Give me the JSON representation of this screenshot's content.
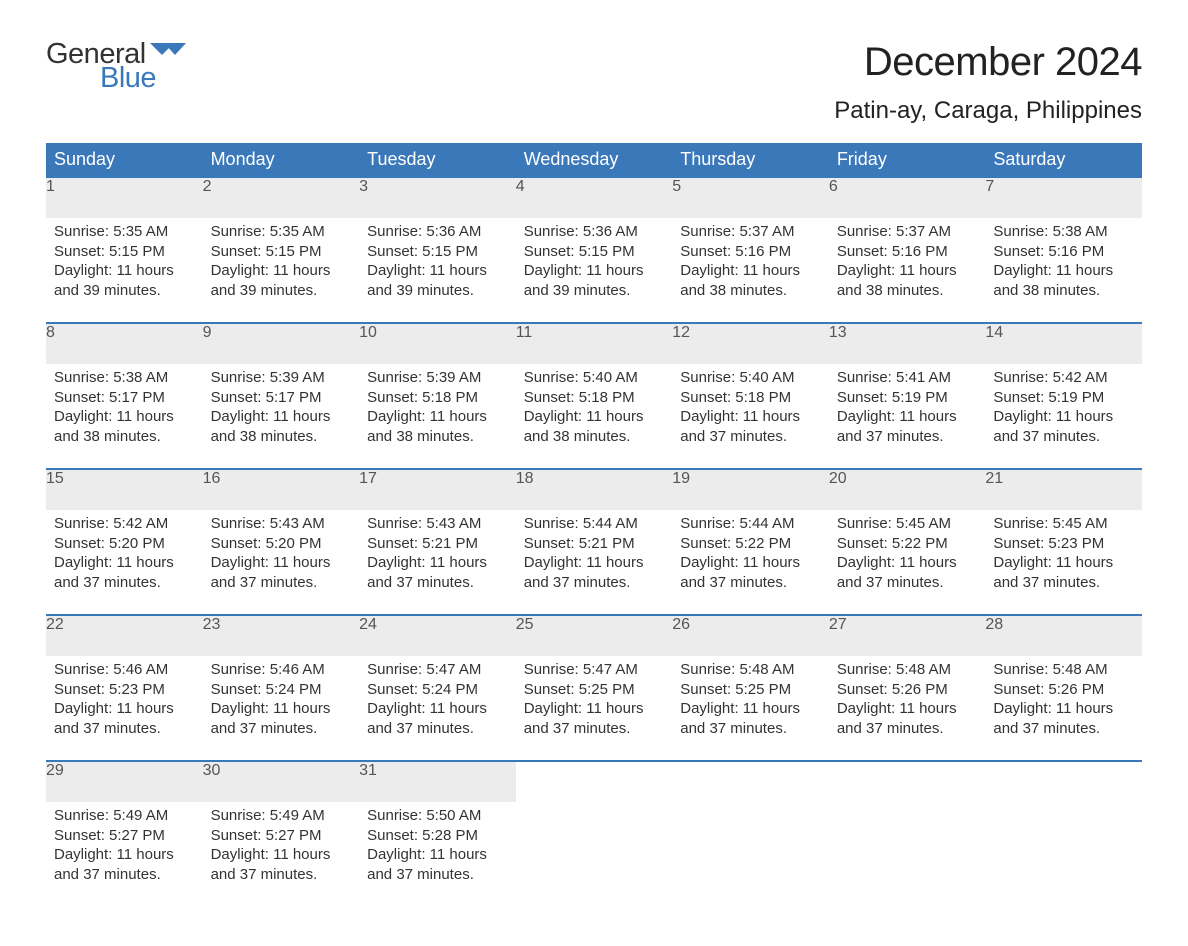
{
  "brand": {
    "text1": "General",
    "text2": "Blue",
    "flag_color": "#3a78b9"
  },
  "title": "December 2024",
  "location": "Patin-ay, Caraga, Philippines",
  "header_bg": "#3a78b9",
  "header_fg": "#ffffff",
  "daynum_bg": "#ececec",
  "daynum_fg": "#555555",
  "body_fg": "#333333",
  "page_bg": "#ffffff",
  "day_names": [
    "Sunday",
    "Monday",
    "Tuesday",
    "Wednesday",
    "Thursday",
    "Friday",
    "Saturday"
  ],
  "days": [
    {
      "n": "1",
      "sunrise": "5:35 AM",
      "sunset": "5:15 PM",
      "daylight": "11 hours and 39 minutes."
    },
    {
      "n": "2",
      "sunrise": "5:35 AM",
      "sunset": "5:15 PM",
      "daylight": "11 hours and 39 minutes."
    },
    {
      "n": "3",
      "sunrise": "5:36 AM",
      "sunset": "5:15 PM",
      "daylight": "11 hours and 39 minutes."
    },
    {
      "n": "4",
      "sunrise": "5:36 AM",
      "sunset": "5:15 PM",
      "daylight": "11 hours and 39 minutes."
    },
    {
      "n": "5",
      "sunrise": "5:37 AM",
      "sunset": "5:16 PM",
      "daylight": "11 hours and 38 minutes."
    },
    {
      "n": "6",
      "sunrise": "5:37 AM",
      "sunset": "5:16 PM",
      "daylight": "11 hours and 38 minutes."
    },
    {
      "n": "7",
      "sunrise": "5:38 AM",
      "sunset": "5:16 PM",
      "daylight": "11 hours and 38 minutes."
    },
    {
      "n": "8",
      "sunrise": "5:38 AM",
      "sunset": "5:17 PM",
      "daylight": "11 hours and 38 minutes."
    },
    {
      "n": "9",
      "sunrise": "5:39 AM",
      "sunset": "5:17 PM",
      "daylight": "11 hours and 38 minutes."
    },
    {
      "n": "10",
      "sunrise": "5:39 AM",
      "sunset": "5:18 PM",
      "daylight": "11 hours and 38 minutes."
    },
    {
      "n": "11",
      "sunrise": "5:40 AM",
      "sunset": "5:18 PM",
      "daylight": "11 hours and 38 minutes."
    },
    {
      "n": "12",
      "sunrise": "5:40 AM",
      "sunset": "5:18 PM",
      "daylight": "11 hours and 37 minutes."
    },
    {
      "n": "13",
      "sunrise": "5:41 AM",
      "sunset": "5:19 PM",
      "daylight": "11 hours and 37 minutes."
    },
    {
      "n": "14",
      "sunrise": "5:42 AM",
      "sunset": "5:19 PM",
      "daylight": "11 hours and 37 minutes."
    },
    {
      "n": "15",
      "sunrise": "5:42 AM",
      "sunset": "5:20 PM",
      "daylight": "11 hours and 37 minutes."
    },
    {
      "n": "16",
      "sunrise": "5:43 AM",
      "sunset": "5:20 PM",
      "daylight": "11 hours and 37 minutes."
    },
    {
      "n": "17",
      "sunrise": "5:43 AM",
      "sunset": "5:21 PM",
      "daylight": "11 hours and 37 minutes."
    },
    {
      "n": "18",
      "sunrise": "5:44 AM",
      "sunset": "5:21 PM",
      "daylight": "11 hours and 37 minutes."
    },
    {
      "n": "19",
      "sunrise": "5:44 AM",
      "sunset": "5:22 PM",
      "daylight": "11 hours and 37 minutes."
    },
    {
      "n": "20",
      "sunrise": "5:45 AM",
      "sunset": "5:22 PM",
      "daylight": "11 hours and 37 minutes."
    },
    {
      "n": "21",
      "sunrise": "5:45 AM",
      "sunset": "5:23 PM",
      "daylight": "11 hours and 37 minutes."
    },
    {
      "n": "22",
      "sunrise": "5:46 AM",
      "sunset": "5:23 PM",
      "daylight": "11 hours and 37 minutes."
    },
    {
      "n": "23",
      "sunrise": "5:46 AM",
      "sunset": "5:24 PM",
      "daylight": "11 hours and 37 minutes."
    },
    {
      "n": "24",
      "sunrise": "5:47 AM",
      "sunset": "5:24 PM",
      "daylight": "11 hours and 37 minutes."
    },
    {
      "n": "25",
      "sunrise": "5:47 AM",
      "sunset": "5:25 PM",
      "daylight": "11 hours and 37 minutes."
    },
    {
      "n": "26",
      "sunrise": "5:48 AM",
      "sunset": "5:25 PM",
      "daylight": "11 hours and 37 minutes."
    },
    {
      "n": "27",
      "sunrise": "5:48 AM",
      "sunset": "5:26 PM",
      "daylight": "11 hours and 37 minutes."
    },
    {
      "n": "28",
      "sunrise": "5:48 AM",
      "sunset": "5:26 PM",
      "daylight": "11 hours and 37 minutes."
    },
    {
      "n": "29",
      "sunrise": "5:49 AM",
      "sunset": "5:27 PM",
      "daylight": "11 hours and 37 minutes."
    },
    {
      "n": "30",
      "sunrise": "5:49 AM",
      "sunset": "5:27 PM",
      "daylight": "11 hours and 37 minutes."
    },
    {
      "n": "31",
      "sunrise": "5:50 AM",
      "sunset": "5:28 PM",
      "daylight": "11 hours and 37 minutes."
    }
  ],
  "labels": {
    "sunrise": "Sunrise: ",
    "sunset": "Sunset: ",
    "daylight": "Daylight: "
  },
  "first_weekday_index": 0,
  "trailing_empty": 4
}
